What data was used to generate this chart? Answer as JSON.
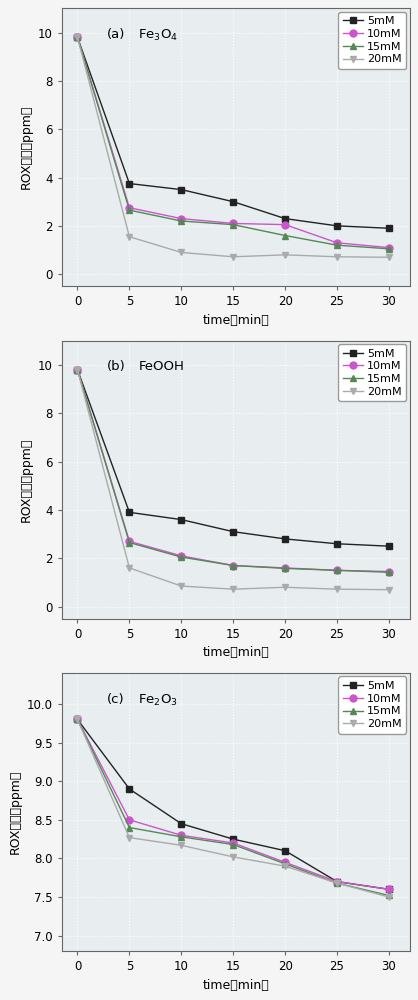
{
  "time": [
    0,
    5,
    10,
    15,
    20,
    25,
    30
  ],
  "subplot_a": {
    "title_left": "(a)",
    "title_right": "Fe$_3$O$_4$",
    "ylabel": "ROX浓度（ppm）",
    "xlabel": "time（min）",
    "ylim": [
      -0.5,
      11.0
    ],
    "yticks": [
      0,
      2,
      4,
      6,
      8,
      10
    ],
    "series": {
      "5mM": [
        9.8,
        3.75,
        3.5,
        3.0,
        2.3,
        2.0,
        1.9
      ],
      "10mM": [
        9.8,
        2.75,
        2.3,
        2.1,
        2.05,
        1.3,
        1.1
      ],
      "15mM": [
        9.8,
        2.65,
        2.2,
        2.05,
        1.6,
        1.2,
        1.05
      ],
      "20mM": [
        9.8,
        1.55,
        0.9,
        0.72,
        0.8,
        0.72,
        0.7
      ]
    }
  },
  "subplot_b": {
    "title_left": "(b)",
    "title_right": "FeOOH",
    "ylabel": "ROX浓度（ppm）",
    "xlabel": "time（min）",
    "ylim": [
      -0.5,
      11.0
    ],
    "yticks": [
      0,
      2,
      4,
      6,
      8,
      10
    ],
    "series": {
      "5mM": [
        9.8,
        3.9,
        3.6,
        3.1,
        2.8,
        2.6,
        2.5
      ],
      "10mM": [
        9.8,
        2.7,
        2.1,
        1.7,
        1.6,
        1.5,
        1.45
      ],
      "15mM": [
        9.8,
        2.65,
        2.05,
        1.7,
        1.58,
        1.5,
        1.42
      ],
      "20mM": [
        9.8,
        1.6,
        0.85,
        0.72,
        0.8,
        0.72,
        0.7
      ]
    }
  },
  "subplot_c": {
    "title_left": "(c)",
    "title_right": "Fe$_2$O$_3$",
    "ylabel": "ROX浓度（ppm）",
    "xlabel": "time（min）",
    "ylim": [
      6.8,
      10.4
    ],
    "yticks": [
      7.0,
      7.5,
      8.0,
      8.5,
      9.0,
      9.5,
      10.0
    ],
    "series": {
      "5mM": [
        9.8,
        8.9,
        8.45,
        8.25,
        8.1,
        7.7,
        7.6
      ],
      "10mM": [
        9.8,
        8.5,
        8.3,
        8.2,
        7.95,
        7.7,
        7.6
      ],
      "15mM": [
        9.8,
        8.4,
        8.28,
        8.18,
        7.93,
        7.68,
        7.52
      ],
      "20mM": [
        9.8,
        8.27,
        8.17,
        8.02,
        7.9,
        7.68,
        7.5
      ]
    }
  },
  "markers": {
    "5mM": "s",
    "10mM": "o",
    "15mM": "^",
    "20mM": "v"
  },
  "colors": {
    "5mM": "#222222",
    "10mM": "#cc55cc",
    "15mM": "#558855",
    "20mM": "#aaaaaa"
  },
  "line_styles": {
    "5mM": "-",
    "10mM": "-",
    "15mM": "-",
    "20mM": "-"
  },
  "legend_labels": [
    "5mM",
    "10mM",
    "15mM",
    "20mM"
  ],
  "background_color": "#e8eef0",
  "grid_color": "#ffffff",
  "markersize": 5,
  "linewidth": 1.0,
  "fig_facecolor": "#f5f5f5"
}
